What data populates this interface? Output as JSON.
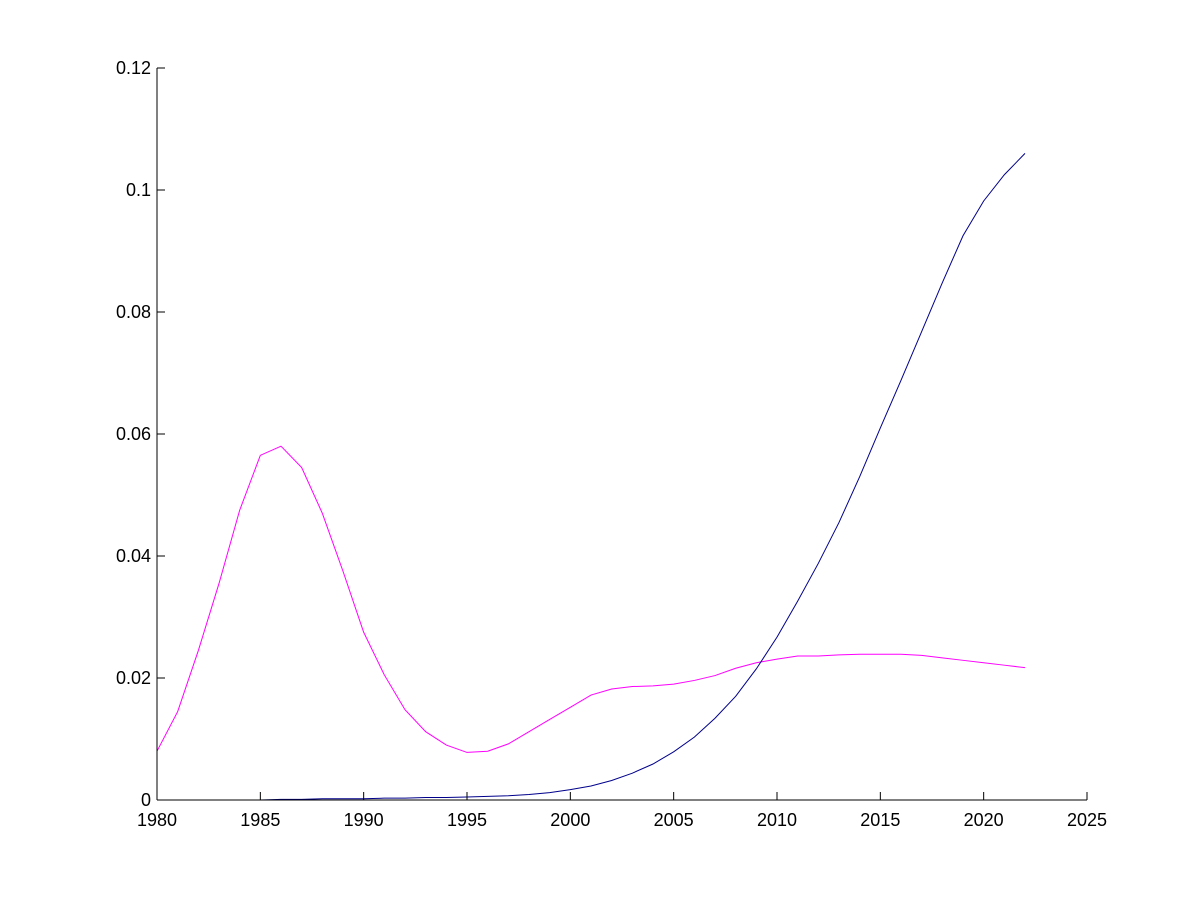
{
  "chart_data": {
    "type": "line",
    "title": "",
    "xlabel": "",
    "ylabel": "",
    "xlim": [
      1980,
      2025
    ],
    "ylim": [
      0,
      0.12
    ],
    "x_ticks": [
      1980,
      1985,
      1990,
      1995,
      2000,
      2005,
      2010,
      2015,
      2020,
      2025
    ],
    "y_ticks": [
      0,
      0.02,
      0.04,
      0.06,
      0.08,
      0.1,
      0.12
    ],
    "x_tick_labels": [
      "1980",
      "1985",
      "1990",
      "1995",
      "2000",
      "2005",
      "2010",
      "2015",
      "2020",
      "2025"
    ],
    "y_tick_labels": [
      "0",
      "0.02",
      "0.04",
      "0.06",
      "0.08",
      "0.1",
      "0.12"
    ],
    "grid": false,
    "legend": "none",
    "axis_color": "#000000",
    "background_color": "#ffffff",
    "series": [
      {
        "color": "#ff00ff",
        "x": [
          1980,
          1981,
          1982,
          1983,
          1984,
          1985,
          1986,
          1987,
          1988,
          1989,
          1990,
          1991,
          1992,
          1993,
          1994,
          1995,
          1996,
          1997,
          1998,
          1999,
          2000,
          2001,
          2002,
          2003,
          2004,
          2005,
          2006,
          2007,
          2008,
          2009,
          2010,
          2011,
          2012,
          2013,
          2014,
          2015,
          2016,
          2017,
          2018,
          2019,
          2020,
          2021,
          2022
        ],
        "y": [
          0.008,
          0.0145,
          0.0245,
          0.0355,
          0.0475,
          0.0565,
          0.058,
          0.0545,
          0.047,
          0.0375,
          0.0275,
          0.0205,
          0.0148,
          0.0112,
          0.009,
          0.0078,
          0.008,
          0.0092,
          0.0112,
          0.0132,
          0.0152,
          0.0172,
          0.0182,
          0.0186,
          0.0187,
          0.019,
          0.0196,
          0.0204,
          0.0216,
          0.0225,
          0.0231,
          0.0236,
          0.0236,
          0.0238,
          0.0239,
          0.0239,
          0.0239,
          0.0237,
          0.0233,
          0.0229,
          0.0225,
          0.0221,
          0.0217
        ]
      },
      {
        "color": "#00008b",
        "x": [
          1980,
          1981,
          1982,
          1983,
          1984,
          1985,
          1986,
          1987,
          1988,
          1989,
          1990,
          1991,
          1992,
          1993,
          1994,
          1995,
          1996,
          1997,
          1998,
          1999,
          2000,
          2001,
          2002,
          2003,
          2004,
          2005,
          2006,
          2007,
          2008,
          2009,
          2010,
          2011,
          2012,
          2013,
          2014,
          2015,
          2016,
          2017,
          2018,
          2019,
          2020,
          2021,
          2022
        ],
        "y": [
          0,
          0,
          0,
          0,
          0,
          0,
          0.0001,
          0.0001,
          0.0002,
          0.0002,
          0.0002,
          0.0003,
          0.0003,
          0.0004,
          0.0004,
          0.0005,
          0.0006,
          0.0007,
          0.0009,
          0.0012,
          0.0017,
          0.0023,
          0.0032,
          0.0044,
          0.0059,
          0.0079,
          0.0103,
          0.0134,
          0.017,
          0.0215,
          0.0267,
          0.0326,
          0.0388,
          0.0455,
          0.053,
          0.061,
          0.0688,
          0.0768,
          0.0848,
          0.0925,
          0.0982,
          0.1025,
          0.106
        ]
      }
    ]
  }
}
